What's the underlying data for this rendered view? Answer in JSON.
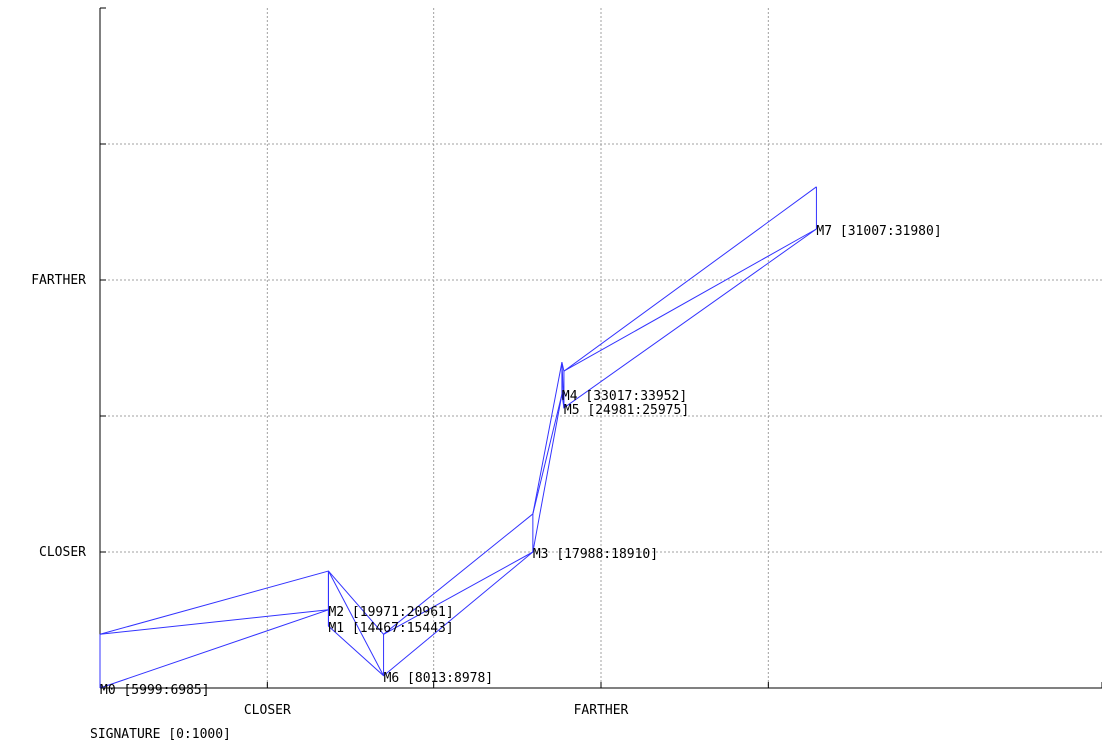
{
  "chart_data": {
    "type": "line",
    "title": "",
    "xlabel": "SIGNATURE [0:1000]",
    "ylabel": "",
    "xlim": [
      0,
      1000
    ],
    "ylim": [
      0,
      1000
    ],
    "grid": true,
    "x_ticks": [
      {
        "value": 0,
        "label": ""
      },
      {
        "value": 167,
        "label": "CLOSER"
      },
      {
        "value": 333,
        "label": ""
      },
      {
        "value": 500,
        "label": "FARTHER"
      },
      {
        "value": 667,
        "label": ""
      },
      {
        "value": 1000,
        "label": ""
      }
    ],
    "y_ticks": [
      {
        "value": 0,
        "label": ""
      },
      {
        "value": 200,
        "label": "CLOSER"
      },
      {
        "value": 400,
        "label": ""
      },
      {
        "value": 600,
        "label": "FARTHER"
      },
      {
        "value": 800,
        "label": ""
      },
      {
        "value": 1000,
        "label": ""
      }
    ],
    "series_color": "#3333ff",
    "points": [
      {
        "label": "M0 [5999:6985]",
        "x": 0,
        "y": 0,
        "x2": 0,
        "y2": 79
      },
      {
        "label": "M1 [14467:15443]",
        "x": 228,
        "y": 91,
        "x2": 228,
        "y2": 172
      },
      {
        "label": "M2 [19971:20961]",
        "x": 228,
        "y": 115,
        "x2": 228,
        "y2": 172
      },
      {
        "label": "M6 [8013:8978]",
        "x": 283,
        "y": 18,
        "x2": 283,
        "y2": 79
      },
      {
        "label": "M3 [17988:18910]",
        "x": 432,
        "y": 200,
        "x2": 432,
        "y2": 256
      },
      {
        "label": "M5 [24981:25975]",
        "x": 463,
        "y": 412,
        "x2": 463,
        "y2": 466
      },
      {
        "label": "M4 [33017:33952]",
        "x": 461,
        "y": 432,
        "x2": 461,
        "y2": 479
      },
      {
        "label": "M7 [31007:31980]",
        "x": 715,
        "y": 675,
        "x2": 715,
        "y2": 737
      }
    ],
    "path_order": [
      0,
      2,
      1,
      3,
      4,
      6,
      5,
      7
    ]
  }
}
